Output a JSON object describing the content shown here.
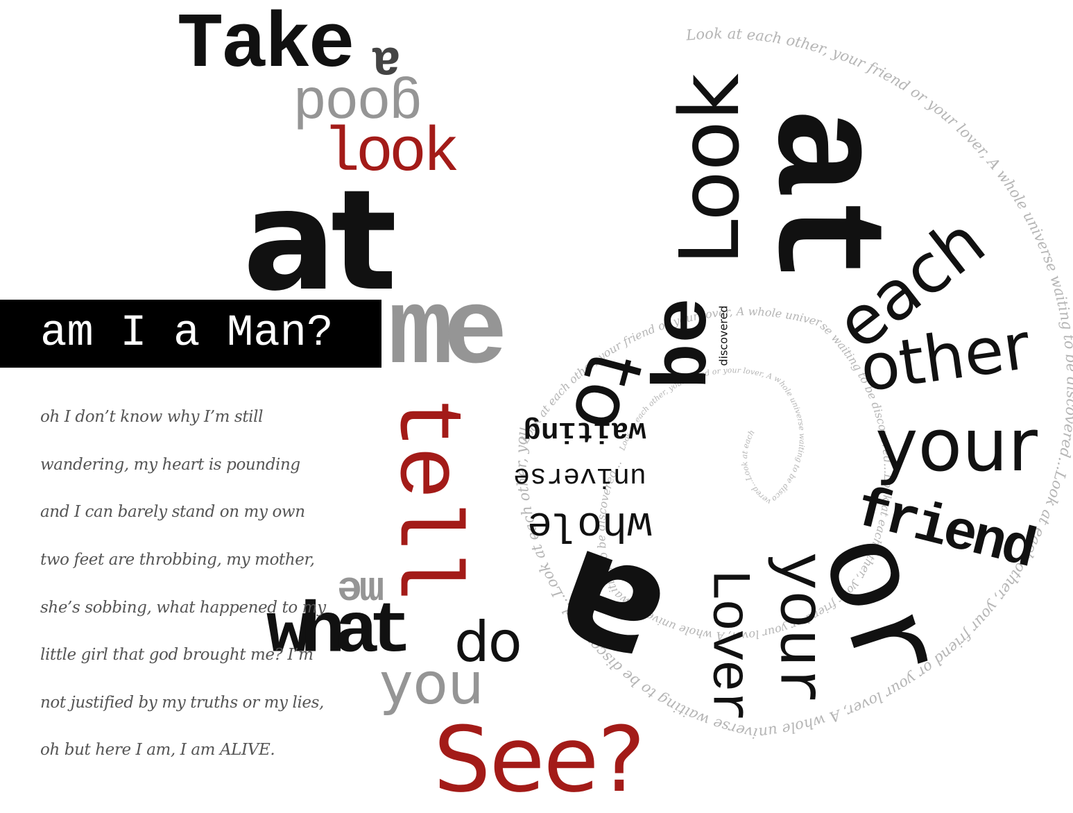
{
  "left_column": {
    "take": "Take",
    "a_flipped": "a",
    "good_flipped": "good",
    "look": "look",
    "at": "at",
    "me": "me",
    "tell": "tell",
    "me_flipped": "me",
    "what": "what",
    "do": "do",
    "you": "you",
    "see": "See?"
  },
  "banner": {
    "text": "am I a Man?"
  },
  "poem": {
    "lines": [
      "oh I don’t know why I’m still",
      "wandering, my heart is pounding",
      "and I can barely stand on my own",
      "two feet are throbbing, my mother,",
      "she’s sobbing, what happened to my",
      "little girl that god brought me? I’m",
      "not justified by my truths or my lies,",
      "oh but here I am, I am ALIVE."
    ]
  },
  "spiral_words": {
    "look": "Look",
    "at": "at",
    "each": "each",
    "other": "other",
    "your": "your",
    "friend": "friend",
    "or": "or",
    "your2": "your",
    "lover": "Lover",
    "a": "a",
    "whole": "whole",
    "universe": "universe",
    "waiting": "waiting",
    "to": "to",
    "be": "be",
    "discovered": "discovered"
  },
  "spiral_text": {
    "outer": "Look at each other, your friend or your lover, A whole universe waiting to be discovered...Look at each other, your friend or your lover, A whole universe waiting to be discovered...Look at each other, your friend or your lover, A whole universe waiting to be discovered...",
    "middle": "Look at each other, your friend or your lover, A whole universe waiting to be discovered...Look at each other, your friend or your lover, A whole universe waiting to be discovered...",
    "inner": "Look at each other, your friend or your lover, A whole universe waiting to be discovered...Look at each other, your friend or your lover, A whole universe"
  },
  "colors": {
    "black": "#111111",
    "red": "#a31b18",
    "grey": "#959595",
    "poem": "#555555",
    "banner": "#000000"
  }
}
